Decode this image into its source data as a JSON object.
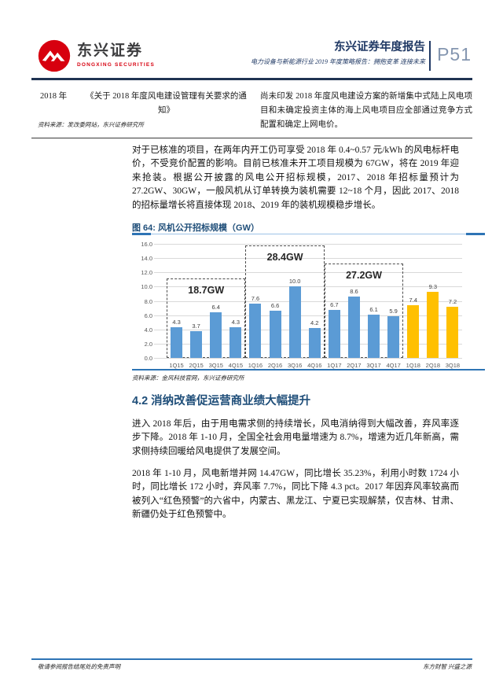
{
  "header": {
    "brand_cn": "东兴证券",
    "brand_en": "DONGXING SECURITIES",
    "report_title": "东兴证券年度报告",
    "report_subtitle": "电力设备与新能源行业 2019 年度策略报告：拥抱变革 连接未来",
    "page_number": "P51",
    "brand_red": "#d7000f",
    "navy": "#1f3864"
  },
  "policy_table": {
    "row": {
      "year": "2018 年",
      "policy": "《关于 2018 年度风电建设管理有关要求的通知》",
      "detail": "尚未印发 2018 年度风电建设方案的新增集中式陆上风电项目和未确定投资主体的海上风电项目应全部通过竞争方式配置和确定上网电价。"
    },
    "source": "资料来源：发改委网站，东兴证券研究所"
  },
  "paragraphs": {
    "p1": "对于已核准的项目，在两年内开工仍可享受 2018 年 0.4~0.57 元/kWh 的风电标杆电价，不受竞价配置的影响。目前已核准未开工项目规模为 67GW，将在 2019 年迎来抢装。根据公开披露的风电公开招标规模，2017、2018 年招标量预计为 27.2GW、30GW，一般风机从订单转换为装机需要 12~18 个月，因此 2017、2018 的招标量增长将直接体现 2018、2019 年的装机规模稳步增长。",
    "p2": "进入 2018 年后，由于用电需求侧的持续增长，风电消纳得到大幅改善，弃风率逐步下降。2018 年 1-10 月，全国全社会用电量增速为 8.7%，增速为近几年新高，需求侧持续回暖给风电提供了发展空间。",
    "p3": "2018 年 1-10 月，风电新增并网 14.47GW，同比增长 35.23%，利用小时数 1724 小时，同比增长 172 小时，弃风率 7.7%，同比下降 4.3 pct。2017 年因弃风率较高而被列入“红色预警”的六省中，内蒙古、黑龙江、宁夏已实现解禁，仅吉林、甘肃、新疆仍处于红色预警中。"
  },
  "figure": {
    "title": "图 64: 风机公开招标规模（GW）",
    "source": "资料来源：金风科技官网，东兴证券研究所"
  },
  "chart_data": {
    "type": "bar",
    "title": "风机公开招标规模（GW）",
    "categories": [
      "1Q15",
      "2Q15",
      "3Q15",
      "4Q15",
      "1Q16",
      "2Q16",
      "3Q16",
      "4Q16",
      "1Q17",
      "2Q17",
      "3Q17",
      "4Q17",
      "1Q18",
      "2Q18",
      "3Q18"
    ],
    "values": [
      4.3,
      3.7,
      6.4,
      4.3,
      7.6,
      6.6,
      10.0,
      4.2,
      6.7,
      8.6,
      6.1,
      5.9,
      7.4,
      9.3,
      7.2
    ],
    "value_labels": [
      "4.3",
      "3.7",
      "6.4",
      "4.3",
      "7.6",
      "6.6",
      "10.0",
      "4.2",
      "6.7",
      "8.6",
      "6.1",
      "5.9",
      "7.4",
      "9.3",
      "7.2"
    ],
    "bar_color_default": "#5b9bd5",
    "bar_color_highlight": "#ffc000",
    "highlight_from_index": 12,
    "ylim": [
      0,
      16
    ],
    "ytick_step": 2,
    "grid": true,
    "legend": false,
    "annotations": [
      {
        "label": "18.7GW",
        "from": 0,
        "to": 3,
        "box_top_value": 11.2
      },
      {
        "label": "28.4GW",
        "from": 4,
        "to": 7,
        "box_top_value": 15.8
      },
      {
        "label": "27.2GW",
        "from": 8,
        "to": 11,
        "box_top_value": 13.2
      }
    ]
  },
  "section": {
    "heading": "4.2 消纳改善促运营商业绩大幅提升"
  },
  "footer": {
    "left": "敬请参阅报告结尾处的免责声明",
    "right": "东方财智 兴盛之源"
  }
}
